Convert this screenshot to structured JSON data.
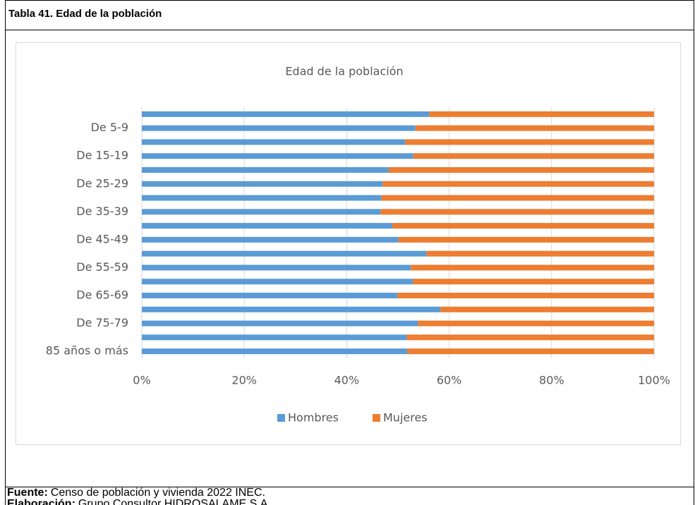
{
  "caption": "Tabla 41. Edad de la población",
  "source": {
    "label": "Fuente:",
    "text": "Censo de población y vivienda 2022 INEC."
  },
  "credit": {
    "label": "Elaboración:",
    "text": "Grupo Consultor HIDROSALAME S.A."
  },
  "chart_data": {
    "type": "stacked_bar_100",
    "orientation": "horizontal",
    "title": "Edad de la población",
    "categories": [
      null,
      "De 5-9",
      null,
      "De 15-19",
      null,
      "De 25-29",
      null,
      "De 35-39",
      null,
      "De 45-49",
      null,
      "De 55-59",
      null,
      "De 65-69",
      null,
      "De 75-79",
      null,
      "85 años o más"
    ],
    "series": [
      {
        "name": "Hombres",
        "color": "#5b9bd5",
        "values": [
          56.1,
          53.4,
          51.4,
          53.0,
          48.2,
          47.0,
          46.8,
          46.6,
          48.9,
          50.1,
          55.6,
          52.5,
          52.9,
          49.9,
          58.3,
          53.9,
          51.7,
          51.8
        ]
      },
      {
        "name": "Mujeres",
        "color": "#ed7d31",
        "values": [
          43.9,
          46.6,
          48.6,
          47.0,
          51.8,
          53.0,
          53.2,
          53.4,
          51.1,
          49.9,
          44.4,
          47.5,
          47.1,
          50.1,
          41.7,
          46.1,
          48.3,
          48.2
        ]
      }
    ],
    "xlim": [
      0,
      100
    ],
    "xticks": [
      {
        "value": 0,
        "label": "0%"
      },
      {
        "value": 20,
        "label": "20%"
      },
      {
        "value": 40,
        "label": "40%"
      },
      {
        "value": 60,
        "label": "60%"
      },
      {
        "value": 80,
        "label": "80%"
      },
      {
        "value": 100,
        "label": "100%"
      }
    ],
    "grid": true,
    "legend": "bottom"
  }
}
